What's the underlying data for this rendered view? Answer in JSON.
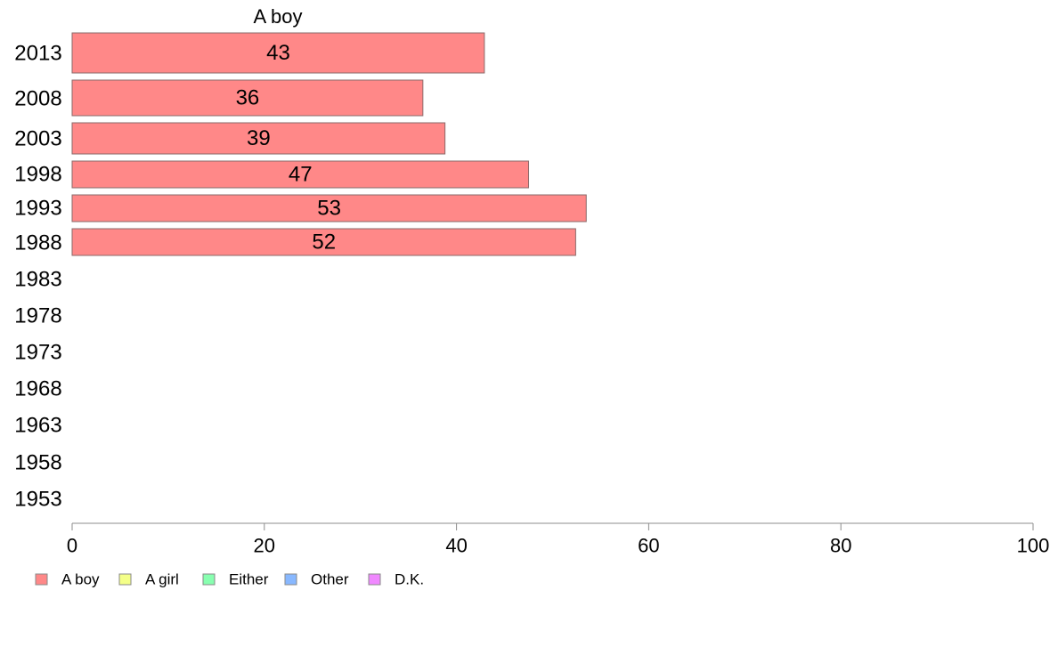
{
  "chart_data": {
    "type": "bar",
    "orientation": "horizontal",
    "series_title": "A boy",
    "categories": [
      "2013",
      "2008",
      "2003",
      "1998",
      "1993",
      "1988",
      "1983",
      "1978",
      "1973",
      "1968",
      "1963",
      "1958",
      "1953"
    ],
    "series": [
      {
        "name": "A boy",
        "color": "#ff8888",
        "values": [
          43,
          36,
          39,
          47,
          53,
          52,
          null,
          null,
          null,
          null,
          null,
          null,
          null
        ],
        "bar_lengths": [
          42.9,
          36.5,
          38.8,
          47.5,
          53.5,
          52.4,
          null,
          null,
          null,
          null,
          null,
          null,
          null
        ]
      }
    ],
    "xlim": [
      0,
      100
    ],
    "xticks": [
      "0",
      "20",
      "40",
      "60",
      "80",
      "100"
    ],
    "xtick_values": [
      0,
      20,
      40,
      60,
      80,
      100
    ],
    "grid": false,
    "legend_position": "bottom-left",
    "legend": [
      {
        "label": "A boy",
        "color": "#ff8888"
      },
      {
        "label": "A girl",
        "color": "#f4ff88"
      },
      {
        "label": "Either",
        "color": "#88ffb0"
      },
      {
        "label": "Other",
        "color": "#88b8ff"
      },
      {
        "label": "D.K.",
        "color": "#f088ff"
      }
    ]
  }
}
